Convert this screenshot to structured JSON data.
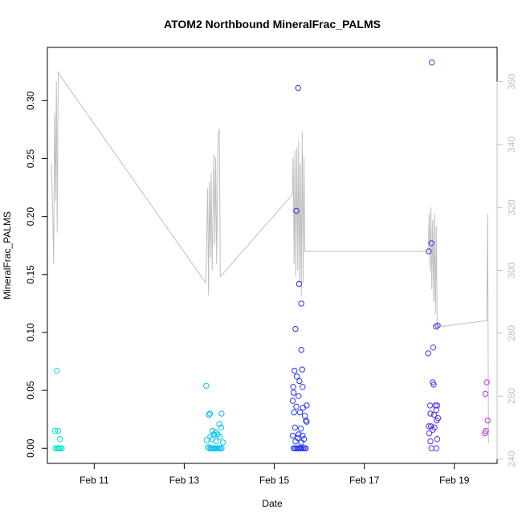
{
  "chart_data": {
    "type": "scatter",
    "title": "ATOM2 Northbound MineralFrac_PALMS",
    "xlabel": "Date",
    "ylabel": "MineralFrac_PALMS",
    "x_ticks": [
      {
        "value": 11,
        "label": "Feb 11"
      },
      {
        "value": 13,
        "label": "Feb 13"
      },
      {
        "value": 15,
        "label": "Feb 15"
      },
      {
        "value": 17,
        "label": "Feb 17"
      },
      {
        "value": 19,
        "label": "Feb 19"
      }
    ],
    "y_ticks": [
      {
        "value": 0.0,
        "label": "0.00"
      },
      {
        "value": 0.05,
        "label": "0.05"
      },
      {
        "value": 0.1,
        "label": "0.10"
      },
      {
        "value": 0.15,
        "label": "0.15"
      },
      {
        "value": 0.2,
        "label": "0.20"
      },
      {
        "value": 0.25,
        "label": "0.25"
      },
      {
        "value": 0.3,
        "label": "0.30"
      }
    ],
    "y2_ticks": [
      {
        "value": 240,
        "label": "240"
      },
      {
        "value": 260,
        "label": "260"
      },
      {
        "value": 280,
        "label": "280"
      },
      {
        "value": 300,
        "label": "300"
      },
      {
        "value": 320,
        "label": "320"
      },
      {
        "value": 340,
        "label": "340"
      },
      {
        "value": 360,
        "label": "360"
      }
    ],
    "xlim": [
      9.96,
      19.95
    ],
    "ylim": [
      -0.013,
      0.346
    ],
    "y2lim": [
      238.6,
      370.9
    ],
    "grid": false,
    "line_color": "#bfbfbf",
    "series": [
      {
        "color": "#00e8d0",
        "points": [
          [
            10.17,
            0.067
          ],
          [
            10.13,
            0.015
          ],
          [
            10.2,
            0.015
          ],
          [
            10.24,
            0.008
          ],
          [
            10.14,
            0.0
          ],
          [
            10.17,
            0.0
          ],
          [
            10.2,
            0.0
          ],
          [
            10.22,
            0.0
          ],
          [
            10.25,
            0.0
          ],
          [
            10.28,
            0.0
          ]
        ]
      },
      {
        "color": "#00c2f0",
        "points": [
          [
            13.49,
            0.054
          ],
          [
            13.55,
            0.029
          ],
          [
            13.57,
            0.03
          ],
          [
            13.83,
            0.03
          ],
          [
            13.78,
            0.021
          ],
          [
            13.82,
            0.018
          ],
          [
            13.63,
            0.015
          ],
          [
            13.7,
            0.014
          ],
          [
            13.66,
            0.012
          ],
          [
            13.74,
            0.012
          ],
          [
            13.58,
            0.01
          ],
          [
            13.79,
            0.01
          ],
          [
            13.5,
            0.007
          ],
          [
            13.62,
            0.008
          ],
          [
            13.71,
            0.006
          ],
          [
            13.86,
            0.005
          ],
          [
            13.53,
            0.001
          ],
          [
            13.56,
            0.0
          ],
          [
            13.59,
            0.0
          ],
          [
            13.62,
            0.0
          ],
          [
            13.65,
            0.0
          ],
          [
            13.68,
            0.0
          ],
          [
            13.71,
            0.0
          ],
          [
            13.74,
            0.0
          ],
          [
            13.77,
            0.0
          ],
          [
            13.8,
            0.0
          ],
          [
            13.83,
            0.0
          ]
        ]
      },
      {
        "color": "#2838f0",
        "points": [
          [
            15.53,
            0.311
          ],
          [
            15.49,
            0.205
          ],
          [
            15.55,
            0.142
          ],
          [
            15.6,
            0.125
          ],
          [
            15.47,
            0.103
          ],
          [
            15.6,
            0.085
          ],
          [
            15.45,
            0.067
          ],
          [
            15.62,
            0.068
          ],
          [
            15.5,
            0.062
          ],
          [
            15.56,
            0.058
          ],
          [
            15.63,
            0.053
          ],
          [
            15.42,
            0.053
          ],
          [
            15.43,
            0.048
          ],
          [
            15.54,
            0.045
          ],
          [
            15.41,
            0.041
          ],
          [
            15.49,
            0.036
          ],
          [
            15.72,
            0.037
          ],
          [
            15.64,
            0.035
          ],
          [
            15.57,
            0.031
          ],
          [
            15.44,
            0.031
          ],
          [
            15.68,
            0.028
          ],
          [
            15.7,
            0.024
          ],
          [
            15.72,
            0.023
          ],
          [
            15.46,
            0.018
          ],
          [
            15.59,
            0.017
          ],
          [
            15.54,
            0.012
          ],
          [
            15.63,
            0.011
          ],
          [
            15.41,
            0.011
          ],
          [
            15.52,
            0.009
          ],
          [
            15.66,
            0.008
          ],
          [
            15.47,
            0.006
          ],
          [
            15.6,
            0.005
          ],
          [
            15.43,
            0.0
          ],
          [
            15.46,
            0.0
          ],
          [
            15.49,
            0.0
          ],
          [
            15.52,
            0.0
          ],
          [
            15.55,
            0.0
          ],
          [
            15.58,
            0.0
          ],
          [
            15.61,
            0.0
          ],
          [
            15.64,
            0.0
          ],
          [
            15.67,
            0.0
          ],
          [
            15.7,
            0.0
          ]
        ]
      },
      {
        "color": "#5a2ee8",
        "points": [
          [
            18.5,
            0.333
          ],
          [
            18.49,
            0.177
          ],
          [
            18.43,
            0.17
          ],
          [
            18.63,
            0.106
          ],
          [
            18.59,
            0.105
          ],
          [
            18.53,
            0.087
          ],
          [
            18.42,
            0.082
          ],
          [
            18.52,
            0.057
          ],
          [
            18.54,
            0.055
          ],
          [
            18.46,
            0.037
          ],
          [
            18.58,
            0.037
          ],
          [
            18.62,
            0.037
          ],
          [
            18.6,
            0.033
          ],
          [
            18.47,
            0.03
          ],
          [
            18.55,
            0.029
          ],
          [
            18.64,
            0.026
          ],
          [
            18.61,
            0.024
          ],
          [
            18.43,
            0.019
          ],
          [
            18.48,
            0.019
          ],
          [
            18.56,
            0.018
          ],
          [
            18.52,
            0.016
          ],
          [
            18.44,
            0.013
          ],
          [
            18.62,
            0.008
          ],
          [
            18.47,
            0.006
          ],
          [
            18.49,
            0.0
          ],
          [
            18.6,
            0.0
          ]
        ]
      },
      {
        "color": "#c030f0",
        "points": [
          [
            19.72,
            0.057
          ],
          [
            19.69,
            0.047
          ],
          [
            19.74,
            0.024
          ],
          [
            19.7,
            0.015
          ],
          [
            19.68,
            0.013
          ]
        ]
      }
    ],
    "line_y2": [
      [
        10.05,
        334
      ],
      [
        10.08,
        318
      ],
      [
        10.1,
        302
      ],
      [
        10.12,
        350
      ],
      [
        10.14,
        322
      ],
      [
        10.16,
        360
      ],
      [
        10.18,
        312
      ],
      [
        10.2,
        363
      ],
      [
        10.24,
        362
      ],
      [
        13.48,
        296
      ],
      [
        13.52,
        326
      ],
      [
        13.54,
        292
      ],
      [
        13.56,
        328
      ],
      [
        13.58,
        304
      ],
      [
        13.6,
        331
      ],
      [
        13.62,
        300
      ],
      [
        13.66,
        337
      ],
      [
        13.68,
        308
      ],
      [
        13.7,
        336
      ],
      [
        13.72,
        302
      ],
      [
        13.75,
        343
      ],
      [
        13.78,
        345
      ],
      [
        13.8,
        298
      ],
      [
        15.4,
        324
      ],
      [
        15.42,
        336
      ],
      [
        15.44,
        302
      ],
      [
        15.46,
        338
      ],
      [
        15.48,
        298
      ],
      [
        15.5,
        339
      ],
      [
        15.52,
        300
      ],
      [
        15.54,
        341
      ],
      [
        15.56,
        296
      ],
      [
        15.58,
        334
      ],
      [
        15.6,
        292
      ],
      [
        15.62,
        344
      ],
      [
        15.64,
        296
      ],
      [
        15.66,
        336
      ],
      [
        15.68,
        306
      ],
      [
        15.72,
        306
      ],
      [
        18.42,
        306
      ],
      [
        18.44,
        318
      ],
      [
        18.46,
        300
      ],
      [
        18.48,
        320
      ],
      [
        18.5,
        294
      ],
      [
        18.52,
        316
      ],
      [
        18.54,
        290
      ],
      [
        18.56,
        318
      ],
      [
        18.58,
        286
      ],
      [
        18.6,
        314
      ],
      [
        18.62,
        282
      ],
      [
        18.64,
        282
      ],
      [
        19.72,
        284
      ],
      [
        19.74,
        318
      ],
      [
        19.76,
        245
      ]
    ]
  }
}
